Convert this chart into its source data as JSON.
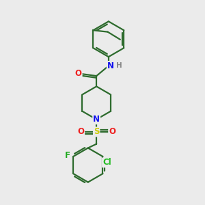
{
  "background_color": "#ebebeb",
  "bond_color": "#2d6b2d",
  "atom_colors": {
    "N": "#1010ee",
    "O": "#ee2020",
    "S": "#cccc00",
    "F": "#20aa20",
    "Cl": "#20bb20",
    "H": "#888888",
    "C": "#2d6b2d"
  },
  "line_width": 1.6,
  "font_size": 8.5,
  "figsize": [
    3.0,
    3.0
  ],
  "dpi": 100
}
